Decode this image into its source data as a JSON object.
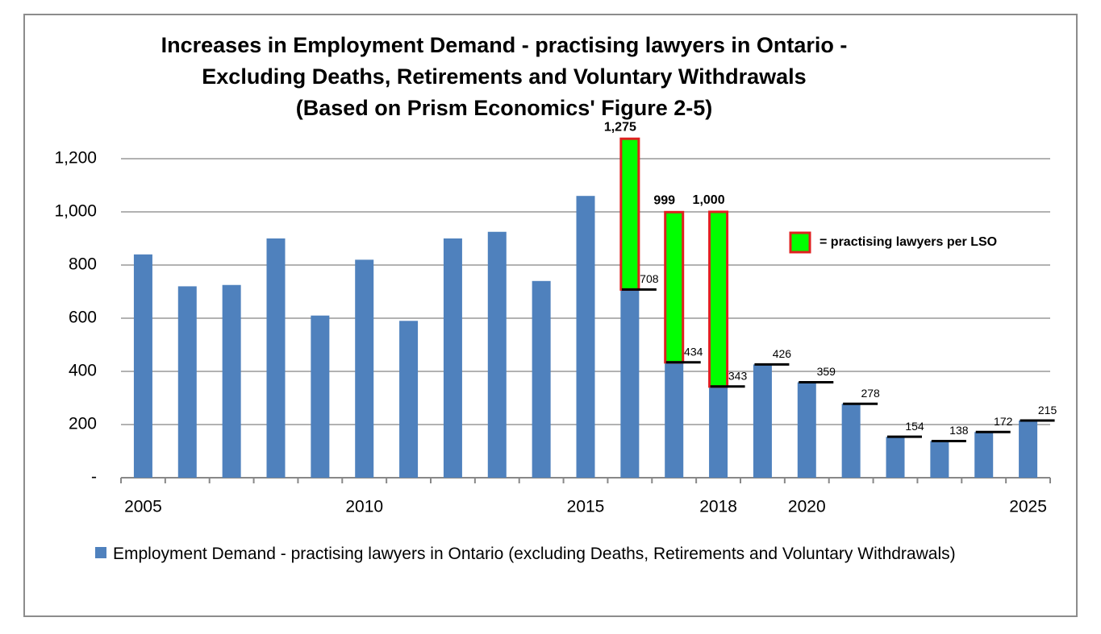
{
  "chart_data": {
    "type": "bar",
    "title": [
      "Increases in Employment Demand - practising lawyers in Ontario -",
      "Excluding Deaths, Retirements and Voluntary Withdrawals",
      "(Based on Prism Economics' Figure 2-5)"
    ],
    "categories": [
      "2005",
      null,
      null,
      null,
      null,
      "2010",
      null,
      null,
      null,
      null,
      "2015",
      null,
      null,
      "2018",
      null,
      "2020",
      null,
      null,
      null,
      null,
      "2025"
    ],
    "series": [
      {
        "name": "Employment Demand - practising lawyers in Ontario (excluding Deaths, Retirements and Voluntary Withdrawals)",
        "color": "#4f81bd",
        "values": [
          840,
          720,
          725,
          900,
          610,
          820,
          590,
          900,
          925,
          740,
          1060,
          708,
          434,
          343,
          426,
          359,
          278,
          154,
          138,
          172,
          215
        ]
      },
      {
        "name": "= practising lawyers per LSO",
        "color": "#00ff00",
        "border_color": "#e02020",
        "values": [
          null,
          null,
          null,
          null,
          null,
          null,
          null,
          null,
          null,
          null,
          null,
          1275,
          999,
          1000,
          null,
          null,
          null,
          null,
          null,
          null,
          null
        ],
        "value_labels": [
          null,
          null,
          null,
          null,
          null,
          null,
          null,
          null,
          null,
          null,
          null,
          "1,275",
          "999",
          "1,000",
          null,
          null,
          null,
          null,
          null,
          null,
          null
        ]
      }
    ],
    "reference_lines": {
      "color": "#000000",
      "values": [
        null,
        null,
        null,
        null,
        null,
        null,
        null,
        null,
        null,
        null,
        null,
        708,
        434,
        343,
        426,
        359,
        278,
        154,
        138,
        172,
        215
      ]
    },
    "ylim": [
      0,
      1200
    ],
    "yticks": [
      {
        "value": 0,
        "label": "-"
      },
      200,
      400,
      600,
      800,
      {
        "value": 1000,
        "label": "1,000"
      },
      {
        "value": 1200,
        "label": "1,200"
      }
    ],
    "grid": true
  }
}
